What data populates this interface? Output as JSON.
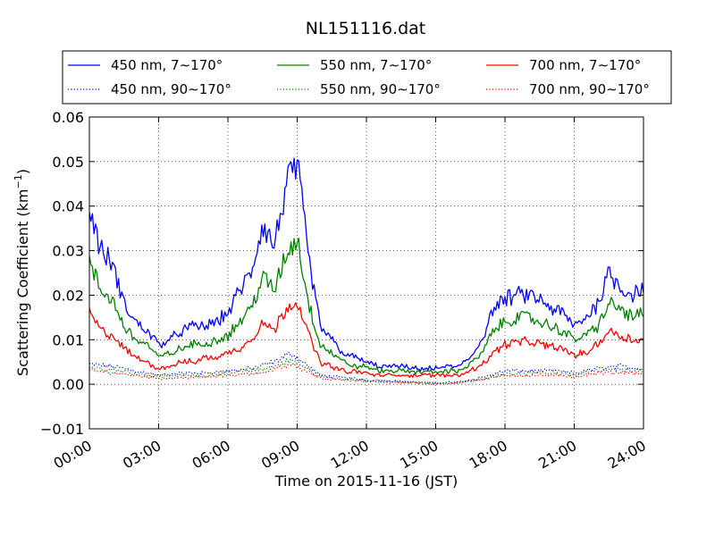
{
  "chart_data": {
    "type": "line",
    "title": "NL151116.dat",
    "xlabel": "Time on 2015-11-16 (JST)",
    "ylabel": "Scattering Coefficient (km",
    "ylabel_exp": "−1",
    "ylabel_close": ")",
    "xlim": [
      "00:00",
      "24:00"
    ],
    "ylim": [
      -0.01,
      0.06
    ],
    "grid": true,
    "legend_position": "top, above plot",
    "x_ticks": [
      "00:00",
      "03:00",
      "06:00",
      "09:00",
      "12:00",
      "15:00",
      "18:00",
      "21:00",
      "24:00"
    ],
    "y_ticks": [
      "−0.01",
      "0.00",
      "0.01",
      "0.02",
      "0.03",
      "0.04",
      "0.05",
      "0.06"
    ],
    "series": [
      {
        "name": "450 nm, 7∼170°",
        "color": "#0000ff",
        "style": "solid",
        "x": [
          "00:00",
          "00:30",
          "01:00",
          "01:30",
          "02:00",
          "02:30",
          "03:00",
          "03:30",
          "04:00",
          "04:30",
          "05:00",
          "05:30",
          "06:00",
          "06:30",
          "07:00",
          "07:30",
          "08:00",
          "08:30",
          "09:00",
          "09:30",
          "10:00",
          "10:30",
          "11:00",
          "11:30",
          "12:00",
          "12:30",
          "13:00",
          "13:30",
          "14:00",
          "14:30",
          "15:00",
          "15:30",
          "16:00",
          "16:30",
          "17:00",
          "17:30",
          "18:00",
          "18:30",
          "19:00",
          "19:30",
          "20:00",
          "20:30",
          "21:00",
          "21:30",
          "22:00",
          "22:30",
          "23:00",
          "23:30",
          "24:00"
        ],
        "values": [
          0.04,
          0.03,
          0.027,
          0.018,
          0.014,
          0.012,
          0.009,
          0.01,
          0.012,
          0.013,
          0.013,
          0.014,
          0.016,
          0.021,
          0.025,
          0.036,
          0.031,
          0.044,
          0.049,
          0.028,
          0.013,
          0.01,
          0.007,
          0.006,
          0.005,
          0.004,
          0.004,
          0.004,
          0.0035,
          0.0035,
          0.0035,
          0.004,
          0.004,
          0.006,
          0.01,
          0.017,
          0.019,
          0.02,
          0.02,
          0.019,
          0.017,
          0.016,
          0.013,
          0.015,
          0.018,
          0.025,
          0.022,
          0.02,
          0.022
        ]
      },
      {
        "name": "550 nm, 7∼170°",
        "color": "#008000",
        "style": "solid",
        "x": [
          "00:00",
          "00:30",
          "01:00",
          "01:30",
          "02:00",
          "02:30",
          "03:00",
          "03:30",
          "04:00",
          "04:30",
          "05:00",
          "05:30",
          "06:00",
          "06:30",
          "07:00",
          "07:30",
          "08:00",
          "08:30",
          "09:00",
          "09:30",
          "10:00",
          "10:30",
          "11:00",
          "11:30",
          "12:00",
          "12:30",
          "13:00",
          "13:30",
          "14:00",
          "14:30",
          "15:00",
          "15:30",
          "16:00",
          "16:30",
          "17:00",
          "17:30",
          "18:00",
          "18:30",
          "19:00",
          "19:30",
          "20:00",
          "20:30",
          "21:00",
          "21:30",
          "22:00",
          "22:30",
          "23:00",
          "23:30",
          "24:00"
        ],
        "values": [
          0.027,
          0.021,
          0.019,
          0.013,
          0.01,
          0.009,
          0.006,
          0.007,
          0.008,
          0.009,
          0.009,
          0.01,
          0.011,
          0.014,
          0.017,
          0.024,
          0.021,
          0.029,
          0.033,
          0.018,
          0.009,
          0.007,
          0.005,
          0.004,
          0.004,
          0.003,
          0.003,
          0.003,
          0.0028,
          0.0028,
          0.0028,
          0.003,
          0.003,
          0.0045,
          0.007,
          0.012,
          0.014,
          0.015,
          0.015,
          0.014,
          0.013,
          0.012,
          0.01,
          0.011,
          0.013,
          0.018,
          0.017,
          0.015,
          0.016
        ]
      },
      {
        "name": "700 nm, 7∼170°",
        "color": "#ff0000",
        "style": "solid",
        "x": [
          "00:00",
          "00:30",
          "01:00",
          "01:30",
          "02:00",
          "02:30",
          "03:00",
          "03:30",
          "04:00",
          "04:30",
          "05:00",
          "05:30",
          "06:00",
          "06:30",
          "07:00",
          "07:30",
          "08:00",
          "08:30",
          "09:00",
          "09:30",
          "10:00",
          "10:30",
          "11:00",
          "11:30",
          "12:00",
          "12:30",
          "13:00",
          "13:30",
          "14:00",
          "14:30",
          "15:00",
          "15:30",
          "16:00",
          "16:30",
          "17:00",
          "17:30",
          "18:00",
          "18:30",
          "19:00",
          "19:30",
          "20:00",
          "20:30",
          "21:00",
          "21:30",
          "22:00",
          "22:30",
          "23:00",
          "23:30",
          "24:00"
        ],
        "values": [
          0.016,
          0.012,
          0.011,
          0.008,
          0.006,
          0.005,
          0.0035,
          0.004,
          0.005,
          0.005,
          0.006,
          0.006,
          0.007,
          0.008,
          0.01,
          0.014,
          0.012,
          0.017,
          0.019,
          0.011,
          0.005,
          0.004,
          0.003,
          0.0028,
          0.0025,
          0.002,
          0.002,
          0.002,
          0.002,
          0.002,
          0.002,
          0.002,
          0.0022,
          0.003,
          0.0045,
          0.007,
          0.009,
          0.0095,
          0.0095,
          0.009,
          0.0085,
          0.008,
          0.0065,
          0.007,
          0.009,
          0.012,
          0.011,
          0.01,
          0.01
        ]
      },
      {
        "name": "450 nm, 90∼170°",
        "color": "#0000ff",
        "style": "dotted",
        "x": [
          "00:00",
          "01:00",
          "02:00",
          "03:00",
          "04:00",
          "05:00",
          "06:00",
          "07:00",
          "08:00",
          "08:45",
          "09:30",
          "10:00",
          "11:00",
          "12:00",
          "13:00",
          "14:00",
          "15:00",
          "16:00",
          "17:00",
          "18:00",
          "19:00",
          "20:00",
          "21:00",
          "22:00",
          "23:00",
          "24:00"
        ],
        "values": [
          0.0045,
          0.004,
          0.003,
          0.002,
          0.0025,
          0.0025,
          0.003,
          0.0035,
          0.005,
          0.007,
          0.004,
          0.002,
          0.0015,
          0.001,
          0.0008,
          0.0005,
          0.0003,
          0.0005,
          0.0015,
          0.003,
          0.003,
          0.003,
          0.0025,
          0.0035,
          0.004,
          0.0035
        ]
      },
      {
        "name": "550 nm, 90∼170°",
        "color": "#008000",
        "style": "dotted",
        "x": [
          "00:00",
          "01:00",
          "02:00",
          "03:00",
          "04:00",
          "05:00",
          "06:00",
          "07:00",
          "08:00",
          "08:45",
          "09:30",
          "10:00",
          "11:00",
          "12:00",
          "13:00",
          "14:00",
          "15:00",
          "16:00",
          "17:00",
          "18:00",
          "19:00",
          "20:00",
          "21:00",
          "22:00",
          "23:00",
          "24:00"
        ],
        "values": [
          0.0038,
          0.0033,
          0.0025,
          0.0017,
          0.002,
          0.002,
          0.0025,
          0.003,
          0.004,
          0.0055,
          0.0033,
          0.0017,
          0.0012,
          0.0008,
          0.0006,
          0.0004,
          0.0002,
          0.0004,
          0.0012,
          0.0025,
          0.0025,
          0.0025,
          0.002,
          0.003,
          0.0033,
          0.003
        ]
      },
      {
        "name": "700 nm, 90∼170°",
        "color": "#ff0000",
        "style": "dotted",
        "x": [
          "00:00",
          "01:00",
          "02:00",
          "03:00",
          "04:00",
          "05:00",
          "06:00",
          "07:00",
          "08:00",
          "08:45",
          "09:30",
          "10:00",
          "11:00",
          "12:00",
          "13:00",
          "14:00",
          "15:00",
          "16:00",
          "17:00",
          "18:00",
          "19:00",
          "20:00",
          "21:00",
          "22:00",
          "23:00",
          "24:00"
        ],
        "values": [
          0.003,
          0.0026,
          0.002,
          0.0013,
          0.0015,
          0.0016,
          0.002,
          0.0024,
          0.0032,
          0.0045,
          0.0027,
          0.0013,
          0.001,
          0.0006,
          0.0004,
          0.0003,
          0.0001,
          0.0003,
          0.001,
          0.002,
          0.002,
          0.002,
          0.0017,
          0.0024,
          0.0027,
          0.0024
        ]
      }
    ],
    "legend_columns": [
      [
        "450 nm, 7∼170°",
        "450 nm, 90∼170°"
      ],
      [
        "550 nm, 7∼170°",
        "550 nm, 90∼170°"
      ],
      [
        "700 nm, 7∼170°",
        "700 nm, 90∼170°"
      ]
    ]
  }
}
